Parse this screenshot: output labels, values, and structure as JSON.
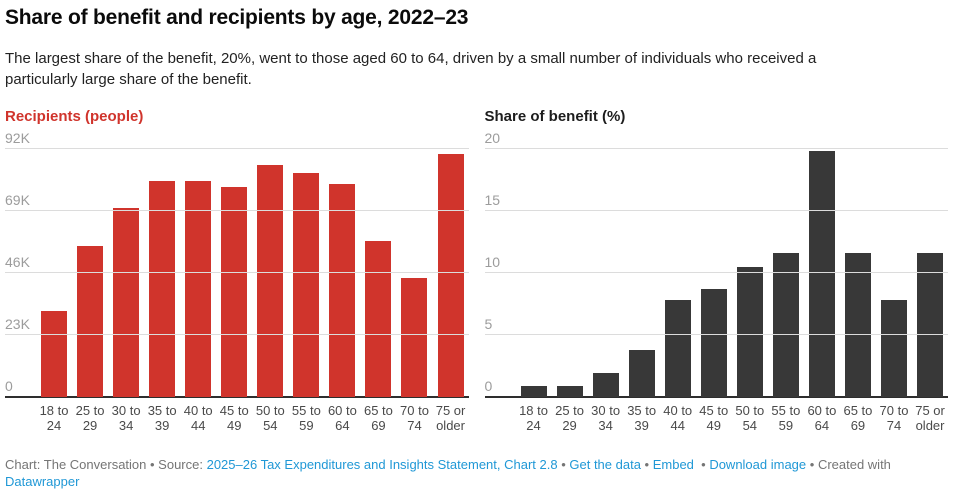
{
  "page": {
    "title": "Share of benefit and recipients by age, 2022–23",
    "subtitle": "The largest share of the benefit, 20%, went to those aged 60 to 64, driven by a small number of individuals who received a particularly large share of the benefit.",
    "subtitle_lines": [
      "The largest share of the benefit, 20%, went to those aged 60 to 64, driven by a small number of individuals who received a",
      "particularly large share of the benefit."
    ]
  },
  "colors": {
    "recipients_accent": "#d0342c",
    "benefit_accent": "#383838",
    "link": "#2098d6",
    "grid": "#dcdcdc",
    "axis_tick_label": "#9c9c9c",
    "category_label": "#4a4a4a",
    "baseline": "#2e2e2e"
  },
  "chart_data": [
    {
      "type": "bar",
      "title": "Recipients (people)",
      "title_color": "#d0342c",
      "bar_color": "#d0342c",
      "categories": [
        "18 to 24",
        "25 to 29",
        "30 to 34",
        "35 to 39",
        "40 to 44",
        "45 to 49",
        "50 to 54",
        "55 to 59",
        "60 to 64",
        "65 to 69",
        "70 to 74",
        "75 or older"
      ],
      "values": [
        32000,
        56000,
        70000,
        80000,
        80000,
        78000,
        86000,
        83000,
        79000,
        58000,
        44000,
        90000
      ],
      "ylabel": "Recipients (people)",
      "xlabel": "",
      "ylim": [
        0,
        92000
      ],
      "yticks": [
        {
          "label": "0",
          "value": 0
        },
        {
          "label": "23K",
          "value": 23000
        },
        {
          "label": "46K",
          "value": 46000
        },
        {
          "label": "69K",
          "value": 69000
        },
        {
          "label": "92K",
          "value": 92000
        }
      ],
      "grid": true,
      "legend": "none"
    },
    {
      "type": "bar",
      "title": "Share of benefit (%)",
      "title_color": "#1d1d1d",
      "bar_color": "#383838",
      "categories": [
        "18 to 24",
        "25 to 29",
        "30 to 34",
        "35 to 39",
        "40 to 44",
        "45 to 49",
        "50 to 54",
        "55 to 59",
        "60 to 64",
        "65 to 69",
        "70 to 74",
        "75 or older"
      ],
      "values": [
        0.9,
        0.9,
        1.9,
        3.8,
        7.8,
        8.7,
        10.5,
        11.6,
        19.8,
        11.6,
        7.8,
        11.6
      ],
      "ylabel": "Share of benefit (%)",
      "xlabel": "",
      "ylim": [
        0,
        20
      ],
      "yticks": [
        {
          "label": "0",
          "value": 0
        },
        {
          "label": "5",
          "value": 5
        },
        {
          "label": "10",
          "value": 10
        },
        {
          "label": "15",
          "value": 15
        },
        {
          "label": "20",
          "value": 20
        }
      ],
      "grid": true,
      "legend": "none"
    }
  ],
  "footer": {
    "segments": [
      {
        "type": "text",
        "name": "footer-credit",
        "text": "Chart: The Conversation"
      },
      {
        "type": "sep",
        "text": " • "
      },
      {
        "type": "text",
        "name": "footer-source-label",
        "text": "Source: "
      },
      {
        "type": "link",
        "name": "source-link",
        "text": "2025–26 Tax Expenditures and Insights Statement, Chart 2.8"
      },
      {
        "type": "sep",
        "text": " • "
      },
      {
        "type": "link",
        "name": "get-the-data-link",
        "text": "Get the data"
      },
      {
        "type": "sep",
        "text": " • "
      },
      {
        "type": "link",
        "name": "embed-link",
        "text": "Embed"
      },
      {
        "type": "sep",
        "text": "  • "
      },
      {
        "type": "link",
        "name": "download-image-link",
        "text": "Download image"
      },
      {
        "type": "sep",
        "text": " • "
      },
      {
        "type": "text",
        "name": "footer-created-with",
        "text": "Created with "
      },
      {
        "type": "link",
        "name": "datawrapper-link",
        "text": "Datawrapper",
        "break_before": true
      }
    ]
  }
}
